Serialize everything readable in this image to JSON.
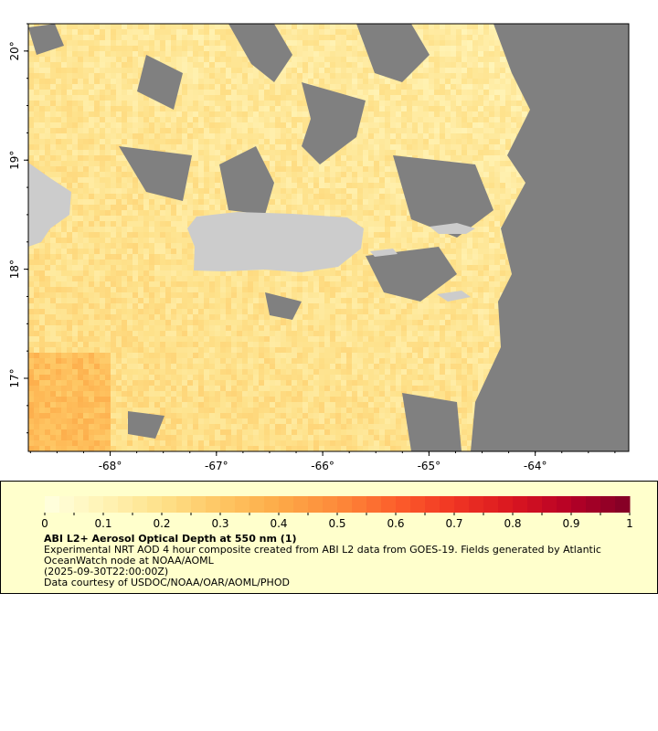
{
  "map": {
    "lon_ticks": [
      "-68°",
      "-67°",
      "-66°",
      "-65°",
      "-64°"
    ],
    "lon_values": [
      -68,
      -67,
      -66,
      -65,
      -64
    ],
    "lat_ticks": [
      "20°",
      "19°",
      "18°",
      "17°"
    ],
    "lat_values": [
      20,
      19,
      18,
      17
    ],
    "lon_range": [
      -68.77,
      -63.12
    ],
    "lat_range": [
      16.33,
      20.25
    ],
    "colors": {
      "land": "#cccccc",
      "nodata": "#808080",
      "background": "#fde08a"
    }
  },
  "legend": {
    "colorbar_ticks": [
      "0",
      "0.1",
      "0.2",
      "0.3",
      "0.4",
      "0.5",
      "0.6",
      "0.7",
      "0.8",
      "0.9",
      "1"
    ],
    "colorbar_range": [
      0,
      1
    ],
    "colorbar_colors": [
      "#ffffe0",
      "#fff3b5",
      "#fee18a",
      "#fec663",
      "#fdaa48",
      "#fd8a3a",
      "#fc5e2b",
      "#f03523",
      "#d91620",
      "#b50026",
      "#800026"
    ],
    "title": "ABI L2+ Aerosol Optical Depth at 550 nm (1)",
    "description": "Experimental NRT AOD 4 hour composite created from ABI L2 data from GOES-19. Fields generated by Atlantic OceanWatch node at NOAA/AOML",
    "time": "(2025-09-30T22:00:00Z)",
    "credit": "Data courtesy of USDOC/NOAA/OAR/AOML/PHOD"
  }
}
